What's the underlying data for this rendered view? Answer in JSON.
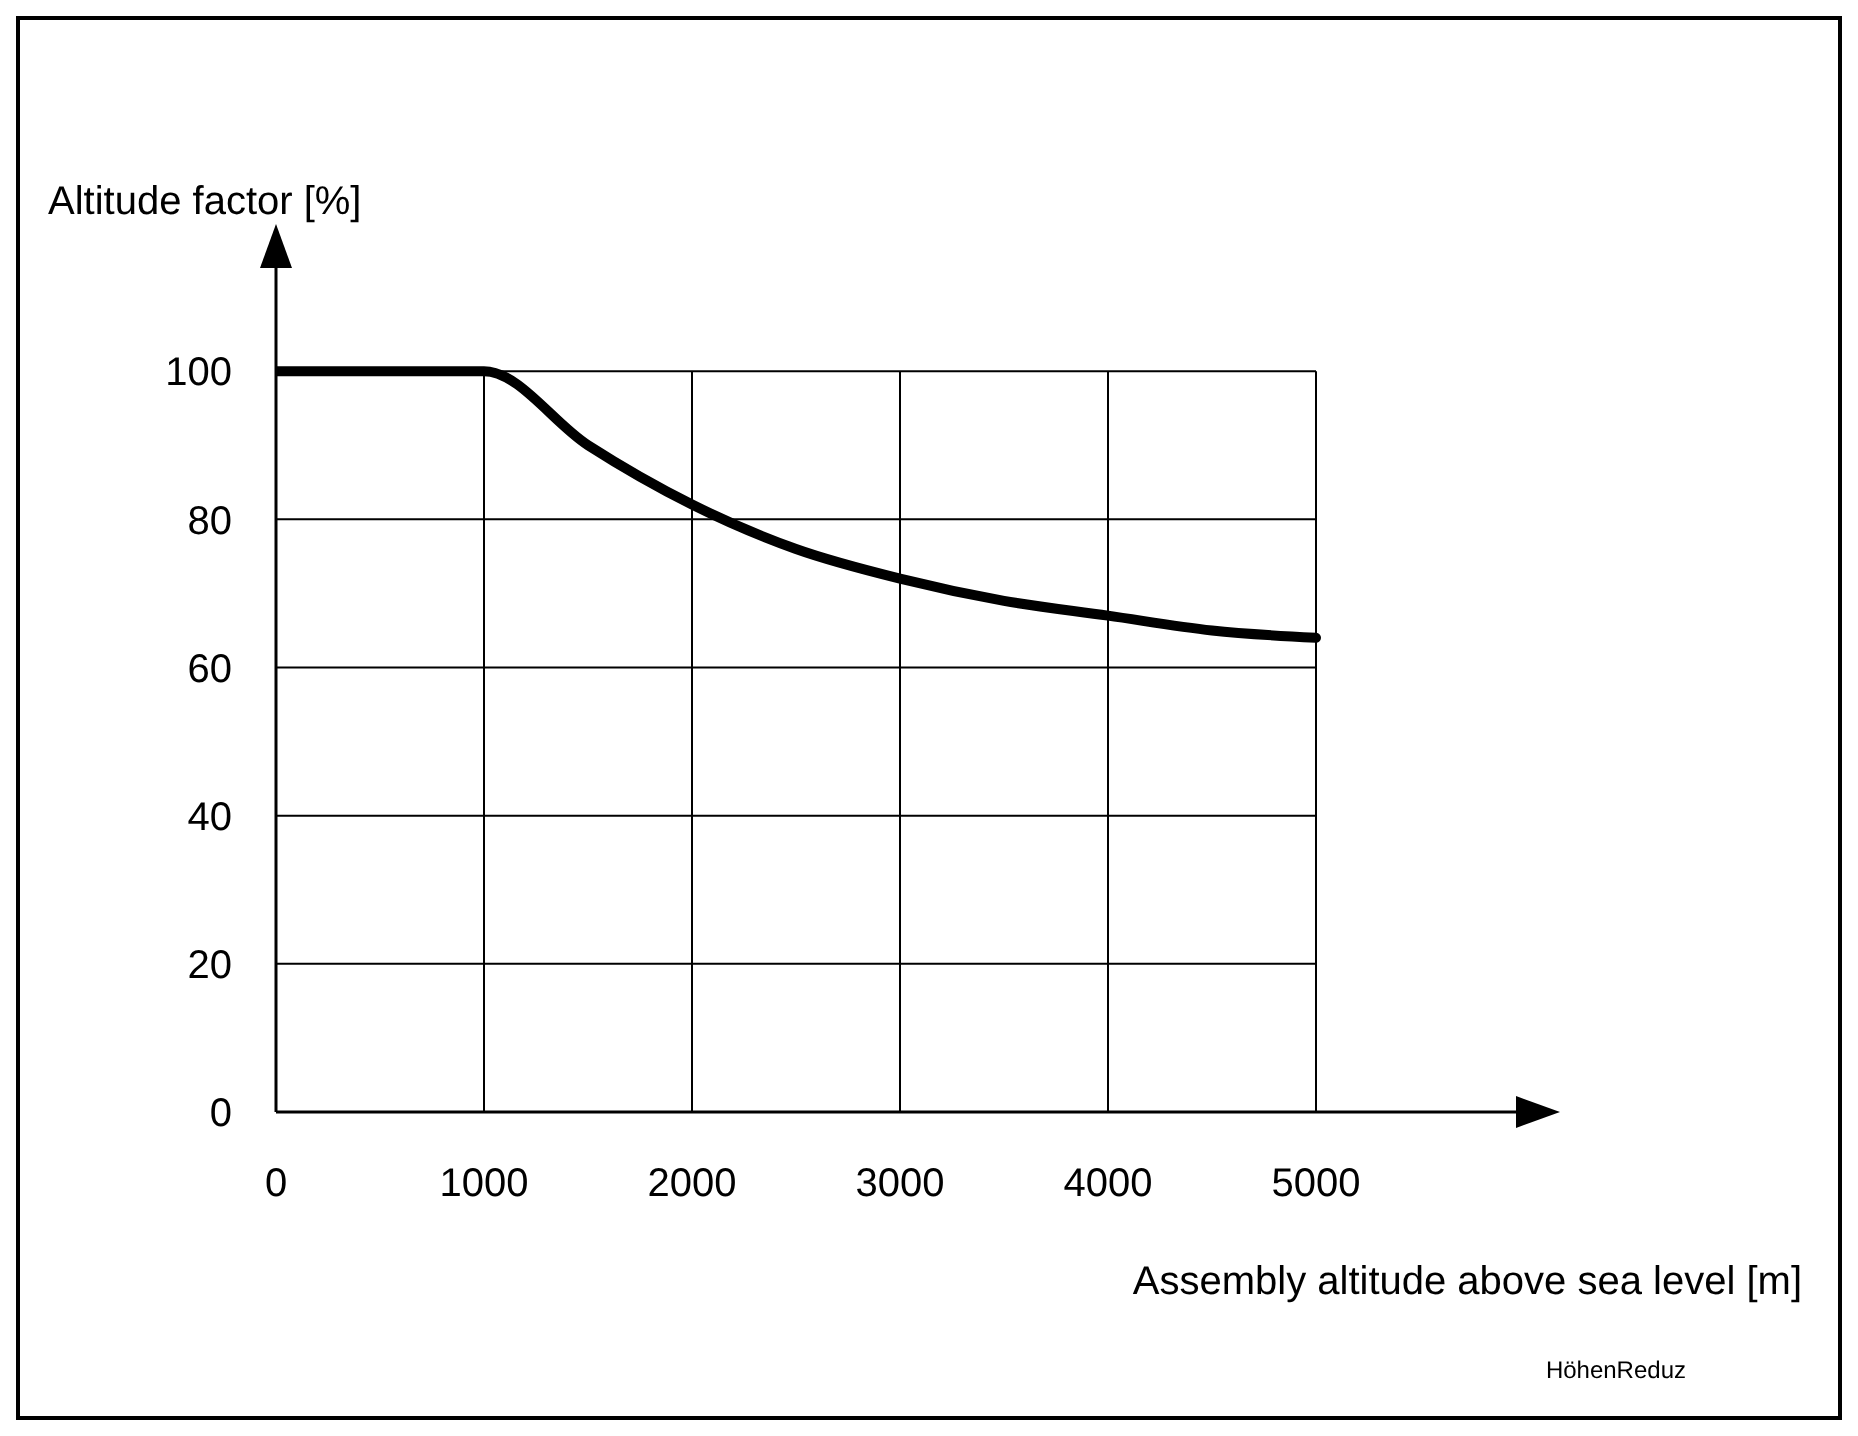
{
  "chart_data": {
    "type": "line",
    "xlabel": "Assembly altitude above sea level [m]",
    "ylabel": "Altitude factor [%]",
    "x": [
      0,
      1000,
      1500,
      2000,
      2500,
      3000,
      3500,
      4000,
      4500,
      5000
    ],
    "series": [
      {
        "color": "#000000",
        "values": [
          100,
          100,
          90,
          82,
          76,
          72,
          69,
          67,
          65,
          64
        ]
      }
    ],
    "xlim": [
      0,
      6000
    ],
    "xticks": [
      0,
      1000,
      2000,
      3000,
      4000,
      5000
    ],
    "ylim": [
      0,
      115
    ],
    "yticks": [
      0,
      20,
      40,
      60,
      80,
      100
    ],
    "grid": true,
    "marker": "none",
    "line_style": "solid",
    "annotations": [
      "HöhenReduz"
    ]
  }
}
